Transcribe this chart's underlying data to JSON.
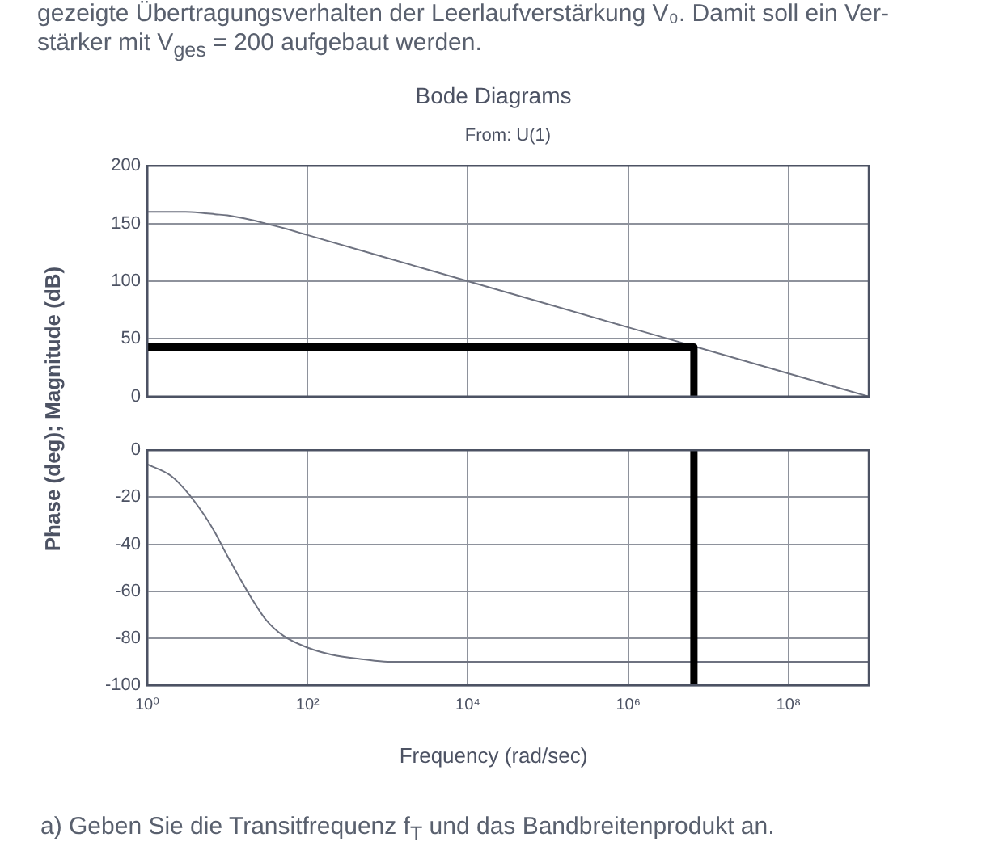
{
  "chart_data": [
    {
      "type": "line",
      "title": "Bode Diagrams",
      "subtitle": "From: U(1)",
      "ylabel": "Phase (deg); Magnitude (dB)",
      "annotations": [
        "gezeigte Übertragungsverhalten der Leerlaufverstärkung V₀. Damit soll ein Ver-",
        "stärker mit V$_{ges}$ = 200 aufgebaut werden."
      ],
      "series": [
        {
          "color": "#6e7280",
          "x": [
            1,
            2,
            3,
            5,
            7,
            10,
            20,
            30,
            50,
            100,
            1000,
            10000,
            100000,
            1000000,
            10000000,
            100000000,
            1000000000
          ],
          "values": [
            160,
            160,
            160,
            159,
            158,
            157,
            153,
            150,
            146,
            140,
            120,
            100,
            80,
            60,
            40,
            20,
            0
          ]
        },
        {
          "color": "#000000",
          "x": [
            1,
            6600000,
            6600000
          ],
          "values": [
            43,
            43,
            0
          ]
        }
      ],
      "xlim": [
        1,
        1000000000
      ],
      "xticks": [
        {
          "value": 1,
          "label": null
        },
        {
          "value": 100,
          "label": null
        },
        {
          "value": 10000,
          "label": null
        },
        {
          "value": 1000000,
          "label": null
        },
        {
          "value": 100000000,
          "label": null
        }
      ],
      "ylim": [
        0,
        200
      ],
      "yticks": [
        0,
        50,
        100,
        150,
        200
      ],
      "log": "x",
      "grid": true,
      "tick_labels": "y"
    },
    {
      "type": "line",
      "xlabel": "Frequency (rad/sec)",
      "annotations": [
        "a) Geben Sie die Transitfrequenz f$_{T}$ und das Bandbreitenprodukt an."
      ],
      "series": [
        {
          "color": "#6e7280",
          "x": [
            1,
            2,
            3,
            5,
            7,
            10,
            20,
            30,
            50,
            100,
            200,
            500,
            1000,
            10000,
            1000000000
          ],
          "values": [
            -6,
            -11,
            -17,
            -27,
            -35,
            -45,
            -63,
            -72,
            -79,
            -84,
            -87,
            -89,
            -90,
            -90,
            -90
          ]
        },
        {
          "color": "#000000",
          "x": [
            6600000,
            6600000
          ],
          "values": [
            0,
            -100
          ]
        }
      ],
      "xlim": [
        1,
        1000000000
      ],
      "xticks": [
        {
          "value": 1,
          "label": "10⁰"
        },
        {
          "value": 100,
          "label": "10²"
        },
        {
          "value": 10000,
          "label": "10⁴"
        },
        {
          "value": 1000000,
          "label": "10⁶"
        },
        {
          "value": 100000000,
          "label": "10⁸"
        }
      ],
      "ylim": [
        -100,
        0
      ],
      "yticks": [
        -100,
        -80,
        -60,
        -40,
        -20,
        0
      ],
      "log": "x",
      "grid": true
    }
  ]
}
